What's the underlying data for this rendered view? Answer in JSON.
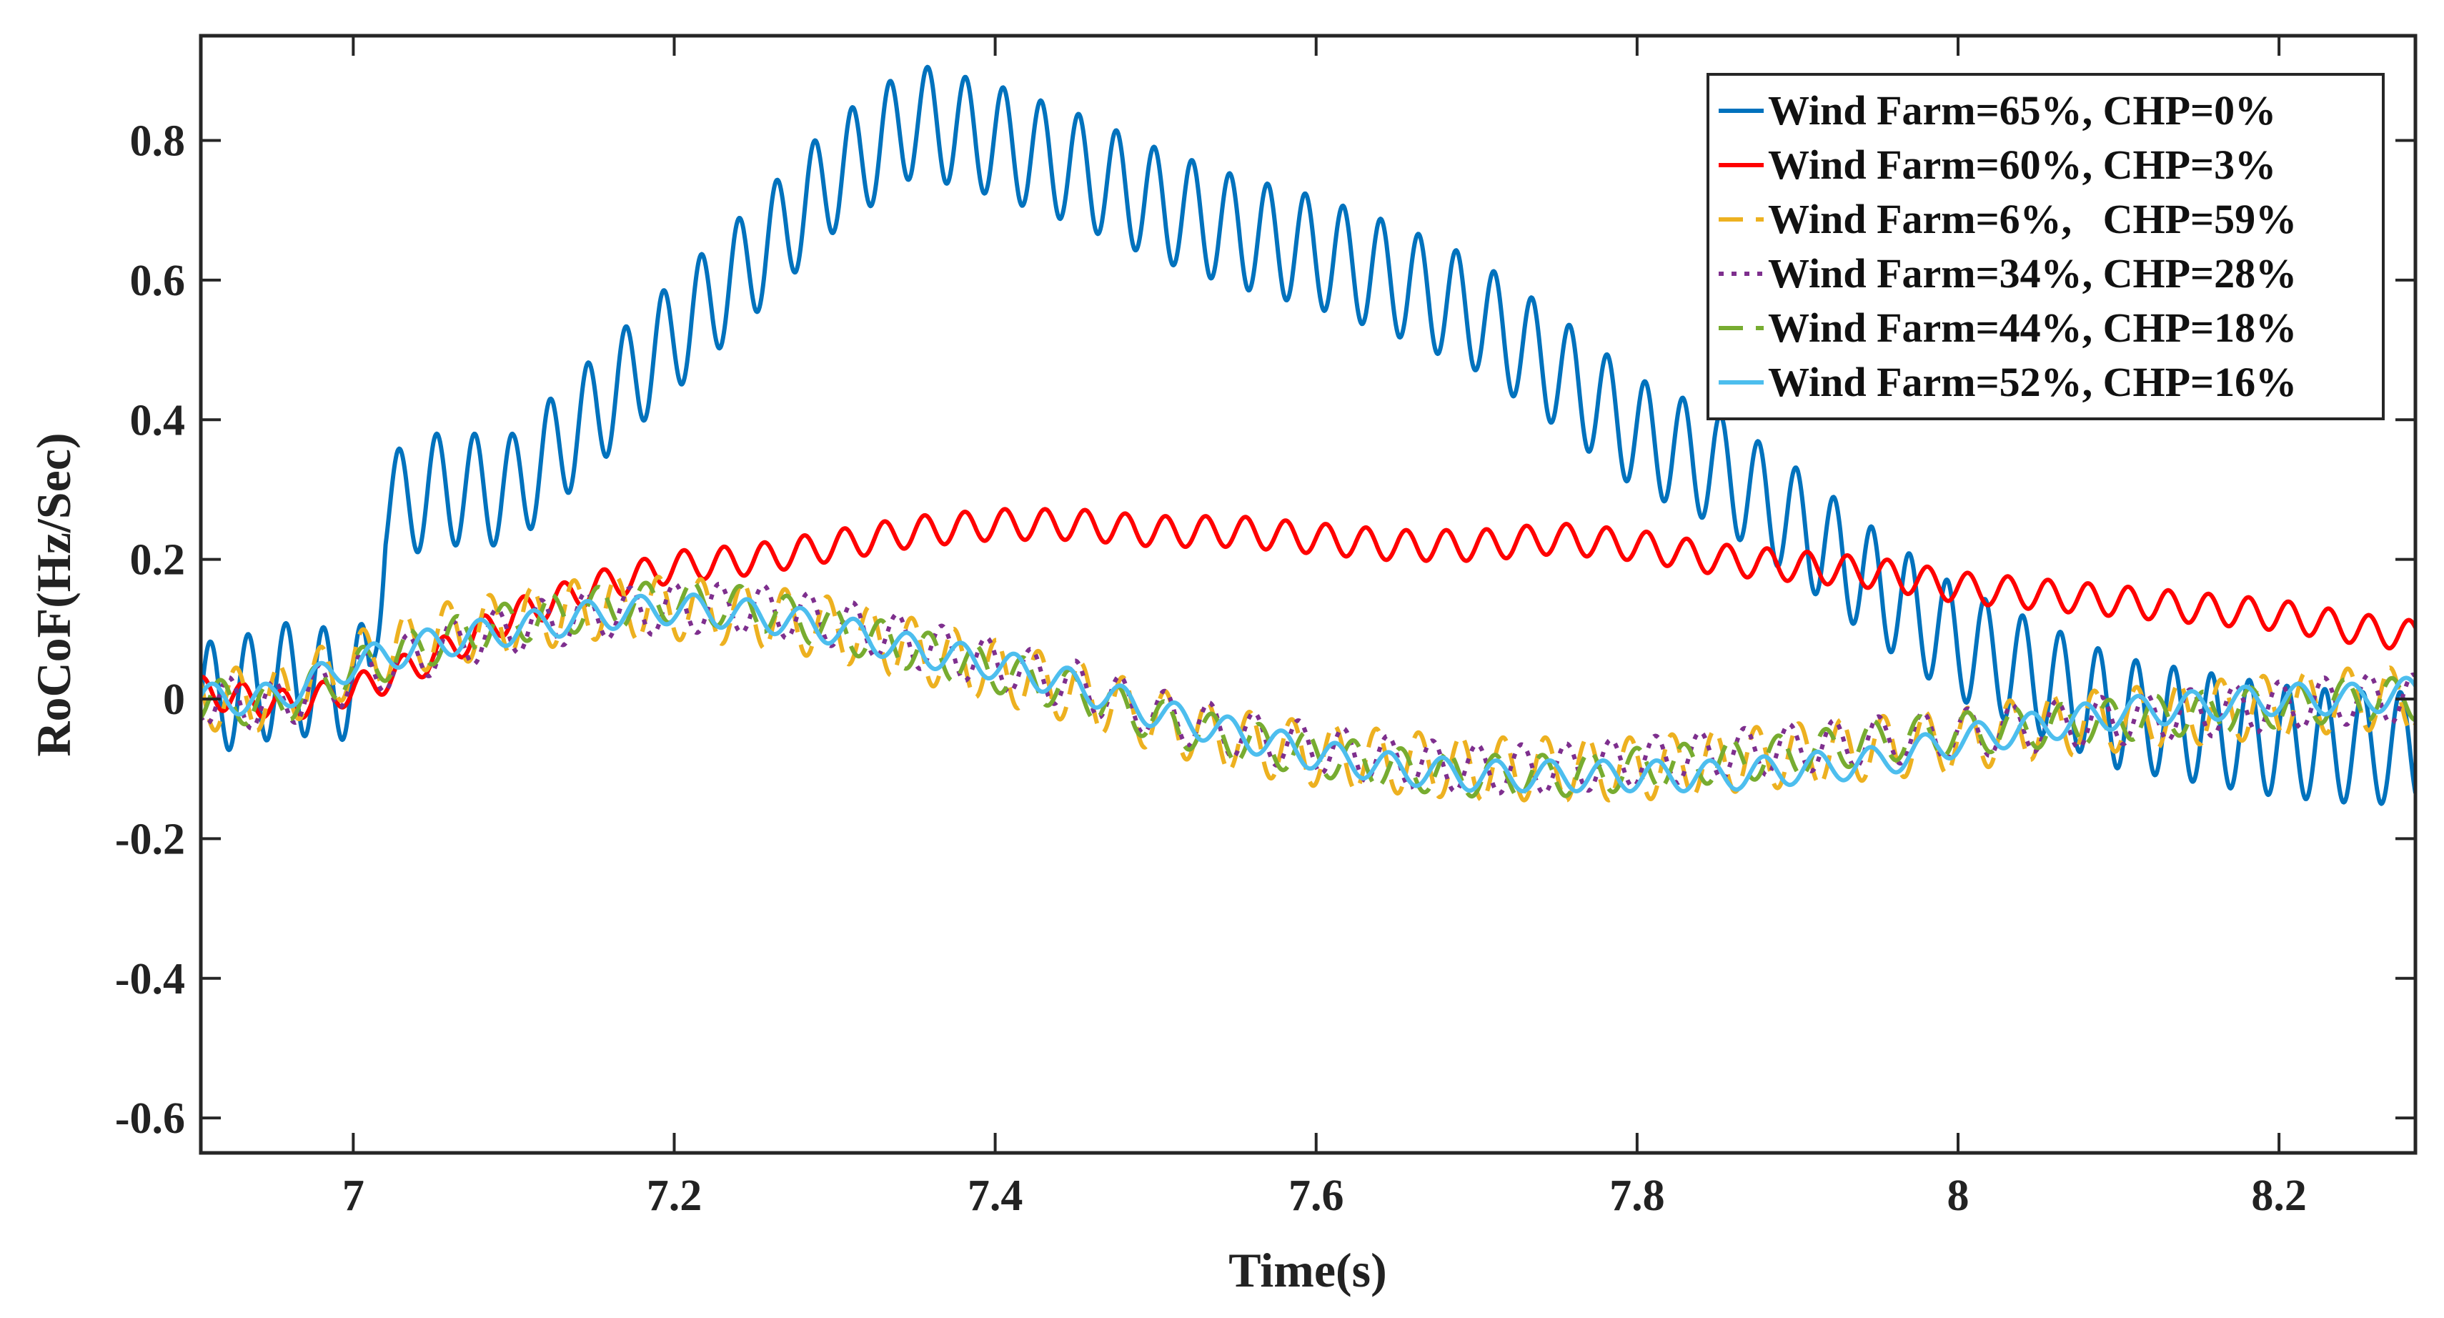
{
  "chart_data": {
    "type": "line",
    "title": "",
    "xlabel": "Time(s)",
    "ylabel": "RoCoF(Hz/Sec)",
    "xlim": [
      6.905,
      8.285
    ],
    "ylim": [
      -0.65,
      0.95
    ],
    "xticks": [
      7,
      7.2,
      7.4,
      7.6,
      7.8,
      8,
      8.2
    ],
    "xtick_labels": [
      "7",
      "7.2",
      "7.4",
      "7.6",
      "7.8",
      "8",
      "8.2"
    ],
    "yticks": [
      -0.6,
      -0.4,
      -0.2,
      0,
      0.2,
      0.4,
      0.6,
      0.8
    ],
    "ytick_labels": [
      "-0.6",
      "-0.4",
      "-0.2",
      "0",
      "0.2",
      "0.4",
      "0.6",
      "0.8"
    ],
    "grid": false,
    "legend_position": "top-right",
    "series": [
      {
        "name": "Wind Farm=65%, CHP=0%",
        "color": "#0072BD",
        "dash": "solid",
        "envelope": {
          "t": [
            6.905,
            6.93,
            6.96,
            6.99,
            7.01,
            7.02,
            7.05,
            7.1,
            7.15,
            7.2,
            7.25,
            7.3,
            7.35,
            7.4,
            7.45,
            7.5,
            7.55,
            7.6,
            7.65,
            7.7,
            7.75,
            7.8,
            7.85,
            7.9,
            7.95,
            8.0,
            8.05,
            8.1,
            8.15,
            8.2,
            8.25,
            8.285
          ],
          "v": [
            0.0,
            0.01,
            0.03,
            0.02,
            0.03,
            0.27,
            0.3,
            0.3,
            0.41,
            0.52,
            0.63,
            0.75,
            0.83,
            0.8,
            0.76,
            0.71,
            0.67,
            0.64,
            0.6,
            0.55,
            0.47,
            0.38,
            0.33,
            0.25,
            0.16,
            0.08,
            0.03,
            -0.02,
            -0.04,
            -0.06,
            -0.07,
            -0.07
          ]
        },
        "oscillation": {
          "freq_hz": 42.5,
          "amplitude": 0.08
        }
      },
      {
        "name": "Wind Farm=60%, CHP=3%",
        "color": "#FF0000",
        "dash": "solid",
        "envelope": {
          "t": [
            6.905,
            6.96,
            7.01,
            7.05,
            7.1,
            7.15,
            7.2,
            7.25,
            7.3,
            7.35,
            7.4,
            7.45,
            7.5,
            7.55,
            7.6,
            7.65,
            7.7,
            7.75,
            7.8,
            7.85,
            7.9,
            7.95,
            8.0,
            8.05,
            8.1,
            8.15,
            8.2,
            8.25,
            8.285
          ],
          "v": [
            0.01,
            -0.01,
            0.02,
            0.06,
            0.12,
            0.16,
            0.19,
            0.2,
            0.22,
            0.24,
            0.25,
            0.25,
            0.24,
            0.24,
            0.23,
            0.22,
            0.22,
            0.23,
            0.22,
            0.2,
            0.19,
            0.18,
            0.16,
            0.15,
            0.14,
            0.13,
            0.12,
            0.1,
            0.09
          ]
        },
        "oscillation": {
          "freq_hz": 40.0,
          "amplitude": 0.022
        }
      },
      {
        "name": "Wind Farm=6%,   CHP=59%",
        "color": "#EDB120",
        "dash": "dashed",
        "envelope": {
          "t": [
            6.905,
            6.95,
            7.0,
            7.05,
            7.1,
            7.15,
            7.2,
            7.25,
            7.3,
            7.35,
            7.4,
            7.45,
            7.5,
            7.55,
            7.6,
            7.65,
            7.7,
            7.75,
            7.8,
            7.85,
            7.9,
            7.95,
            8.0,
            8.05,
            8.1,
            8.15,
            8.2,
            8.25,
            8.285
          ],
          "v": [
            0.0,
            0.0,
            0.05,
            0.09,
            0.11,
            0.13,
            0.13,
            0.12,
            0.1,
            0.07,
            0.04,
            0.01,
            -0.03,
            -0.06,
            -0.08,
            -0.09,
            -0.1,
            -0.1,
            -0.1,
            -0.09,
            -0.08,
            -0.07,
            -0.06,
            -0.04,
            -0.03,
            -0.02,
            -0.01,
            0.0,
            0.0
          ]
        },
        "oscillation": {
          "freq_hz": 38.0,
          "amplitude": 0.045
        }
      },
      {
        "name": "Wind Farm=34%, CHP=28%",
        "color": "#7E2F8E",
        "dash": "dotted",
        "envelope": {
          "t": [
            6.905,
            6.95,
            7.0,
            7.05,
            7.1,
            7.15,
            7.2,
            7.25,
            7.3,
            7.35,
            7.4,
            7.45,
            7.5,
            7.55,
            7.6,
            7.65,
            7.7,
            7.75,
            7.8,
            7.85,
            7.9,
            7.95,
            8.0,
            8.05,
            8.1,
            8.15,
            8.2,
            8.25,
            8.285
          ],
          "v": [
            0.0,
            -0.01,
            0.03,
            0.07,
            0.1,
            0.12,
            0.13,
            0.13,
            0.11,
            0.08,
            0.05,
            0.02,
            -0.02,
            -0.05,
            -0.07,
            -0.09,
            -0.1,
            -0.1,
            -0.09,
            -0.08,
            -0.07,
            -0.06,
            -0.05,
            -0.04,
            -0.03,
            -0.02,
            -0.01,
            0.0,
            0.0
          ]
        },
        "oscillation": {
          "freq_hz": 36.0,
          "amplitude": 0.035
        }
      },
      {
        "name": "Wind Farm=44%, CHP=18%",
        "color": "#77AC30",
        "dash": "dashed",
        "envelope": {
          "t": [
            6.905,
            6.95,
            7.0,
            7.05,
            7.1,
            7.15,
            7.2,
            7.25,
            7.3,
            7.35,
            7.4,
            7.45,
            7.5,
            7.55,
            7.6,
            7.65,
            7.7,
            7.75,
            7.8,
            7.85,
            7.9,
            7.95,
            8.0,
            8.05,
            8.1,
            8.15,
            8.2,
            8.25,
            8.285
          ],
          "v": [
            0.0,
            -0.01,
            0.04,
            0.08,
            0.11,
            0.13,
            0.14,
            0.13,
            0.1,
            0.07,
            0.04,
            0.01,
            -0.03,
            -0.06,
            -0.08,
            -0.1,
            -0.11,
            -0.11,
            -0.1,
            -0.09,
            -0.08,
            -0.06,
            -0.05,
            -0.04,
            -0.03,
            -0.02,
            -0.01,
            0.0,
            0.0
          ]
        },
        "oscillation": {
          "freq_hz": 34.0,
          "amplitude": 0.03
        }
      },
      {
        "name": "Wind Farm=52%, CHP=16%",
        "color": "#4DBEEE",
        "dash": "solid",
        "envelope": {
          "t": [
            6.905,
            6.95,
            7.0,
            7.05,
            7.1,
            7.15,
            7.2,
            7.25,
            7.3,
            7.35,
            7.4,
            7.45,
            7.5,
            7.55,
            7.6,
            7.65,
            7.7,
            7.75,
            7.8,
            7.85,
            7.9,
            7.95,
            8.0,
            8.05,
            8.1,
            8.15,
            8.2,
            8.25,
            8.285
          ],
          "v": [
            0.0,
            0.0,
            0.05,
            0.08,
            0.1,
            0.12,
            0.13,
            0.12,
            0.1,
            0.07,
            0.05,
            0.02,
            -0.02,
            -0.05,
            -0.08,
            -0.1,
            -0.11,
            -0.11,
            -0.11,
            -0.11,
            -0.1,
            -0.09,
            -0.06,
            -0.04,
            -0.02,
            -0.01,
            0.0,
            0.0,
            0.01
          ]
        },
        "oscillation": {
          "freq_hz": 30.0,
          "amplitude": 0.022
        }
      }
    ]
  }
}
